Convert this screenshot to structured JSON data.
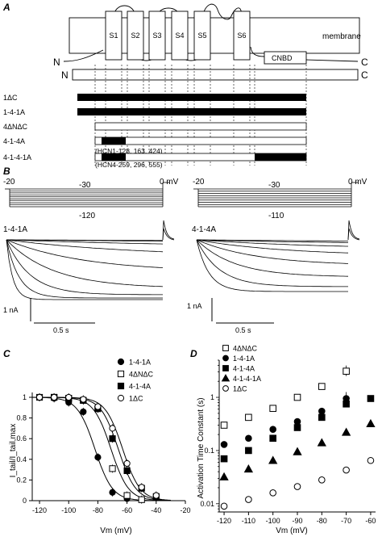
{
  "panels": {
    "A": {
      "letter": "A",
      "segments": [
        "S1",
        "S2",
        "S3",
        "S4",
        "S5",
        "S6"
      ],
      "membrane_label": "membrane",
      "cnbd_label": "CNBD",
      "n_label": "N",
      "c_label": "C",
      "constructs": [
        {
          "label": "1ΔC",
          "fill": "all-black"
        },
        {
          "label": "1-4-1A",
          "fill": "all-black"
        },
        {
          "label": "4ΔNΔC",
          "fill": "all-white"
        },
        {
          "label": "4-1-4A",
          "fill": "small-black"
        },
        {
          "label": "4-1-4-1A",
          "fill": "small-black-and-right-black"
        }
      ],
      "annotation_1": "(HCN1-128, 163, 424)",
      "annotation_2": "(HCN4-259, 296, 555)"
    },
    "B": {
      "letter": "B",
      "left": {
        "hold_start": "-20",
        "hold_mid": "-30",
        "end_label": "0 mV",
        "min_step": "-120",
        "construct": "1-4-1A",
        "scale_current": "1 nA",
        "scale_time": "0.5 s"
      },
      "right": {
        "hold_start": "-20",
        "hold_mid": "-30",
        "end_label": "0 mV",
        "min_step": "-110",
        "construct": "4-1-4A",
        "scale_current": "1 nA",
        "scale_time": "0.5 s"
      }
    },
    "C": {
      "letter": "C",
      "ylabel": "I_tail/I_tail,max",
      "xlabel": "Vm (mV)",
      "legend": [
        "1-4-1A",
        "4ΔNΔC",
        "4-1-4A",
        "1ΔC"
      ]
    },
    "D": {
      "letter": "D",
      "ylabel": "Activation Time Constant (s)",
      "xlabel": "Vm (mV)",
      "legend": [
        "4ΔNΔC",
        "1-4-1A",
        "4-1-4A",
        "4-1-4-1A",
        "1ΔC"
      ]
    }
  },
  "chart_data": [
    {
      "type": "scatter",
      "panel": "C",
      "xlabel": "Vm (mV)",
      "ylabel": "I_tail/I_tail,max",
      "xlim": [
        -125,
        -20
      ],
      "ylim": [
        0,
        1
      ],
      "xticks": [
        -120,
        -100,
        -80,
        -60,
        -40,
        -20
      ],
      "yticks": [
        0,
        0.2,
        0.4,
        0.6,
        0.8,
        1
      ],
      "series": [
        {
          "name": "1-4-1A",
          "marker": "filled-circle",
          "x": [
            -120,
            -110,
            -100,
            -90,
            -80,
            -70,
            -60
          ],
          "y": [
            1.0,
            0.99,
            0.95,
            0.86,
            0.42,
            0.08,
            0.02
          ],
          "v_half": -82
        },
        {
          "name": "4ΔNΔC",
          "marker": "open-square",
          "x": [
            -120,
            -110,
            -100,
            -90,
            -80,
            -70,
            -60,
            -50
          ],
          "y": [
            1.0,
            1.0,
            0.99,
            0.97,
            0.89,
            0.31,
            0.05,
            0.01
          ],
          "v_half": -71
        },
        {
          "name": "4-1-4A",
          "marker": "filled-square",
          "x": [
            -110,
            -100,
            -90,
            -80,
            -70,
            -60,
            -50,
            -40
          ],
          "y": [
            1.0,
            0.99,
            0.97,
            0.89,
            0.6,
            0.29,
            0.12,
            0.04
          ],
          "v_half": -66
        },
        {
          "name": "1ΔC",
          "marker": "open-circle",
          "x": [
            -120,
            -110,
            -100,
            -90,
            -80,
            -70,
            -60,
            -50,
            -40
          ],
          "y": [
            1.0,
            1.0,
            1.0,
            0.98,
            0.91,
            0.7,
            0.36,
            0.13,
            0.05
          ],
          "v_half": -63
        }
      ]
    },
    {
      "type": "scatter",
      "panel": "D",
      "scale": "log-y",
      "xlabel": "Vm (mV)",
      "ylabel": "Activation Time Constant (s)",
      "xlim": [
        -122,
        -58
      ],
      "ylim": [
        0.007,
        5
      ],
      "xticks": [
        -120,
        -110,
        -100,
        -90,
        -80,
        -70,
        -60
      ],
      "yticks": [
        0.01,
        0.1,
        1
      ],
      "series": [
        {
          "name": "4ΔNΔC",
          "marker": "open-square",
          "x": [
            -120,
            -110,
            -100,
            -90,
            -80,
            -70
          ],
          "y": [
            0.3,
            0.42,
            0.62,
            1.0,
            1.6,
            3.1
          ]
        },
        {
          "name": "1-4-1A",
          "marker": "filled-circle",
          "x": [
            -120,
            -110,
            -100,
            -90,
            -80,
            -70
          ],
          "y": [
            0.13,
            0.17,
            0.25,
            0.35,
            0.55,
            0.95
          ]
        },
        {
          "name": "4-1-4A",
          "marker": "filled-square",
          "x": [
            -120,
            -110,
            -100,
            -90,
            -80,
            -70,
            -60
          ],
          "y": [
            0.07,
            0.1,
            0.17,
            0.27,
            0.42,
            0.75,
            0.95
          ]
        },
        {
          "name": "4-1-4-1A",
          "marker": "filled-triangle",
          "x": [
            -120,
            -110,
            -100,
            -90,
            -80,
            -70,
            -60
          ],
          "y": [
            0.032,
            0.045,
            0.065,
            0.095,
            0.14,
            0.22,
            0.32
          ]
        },
        {
          "name": "1ΔC",
          "marker": "open-circle",
          "x": [
            -120,
            -110,
            -100,
            -90,
            -80,
            -70,
            -60
          ],
          "y": [
            0.009,
            0.012,
            0.016,
            0.021,
            0.028,
            0.043,
            0.065
          ]
        }
      ]
    }
  ]
}
